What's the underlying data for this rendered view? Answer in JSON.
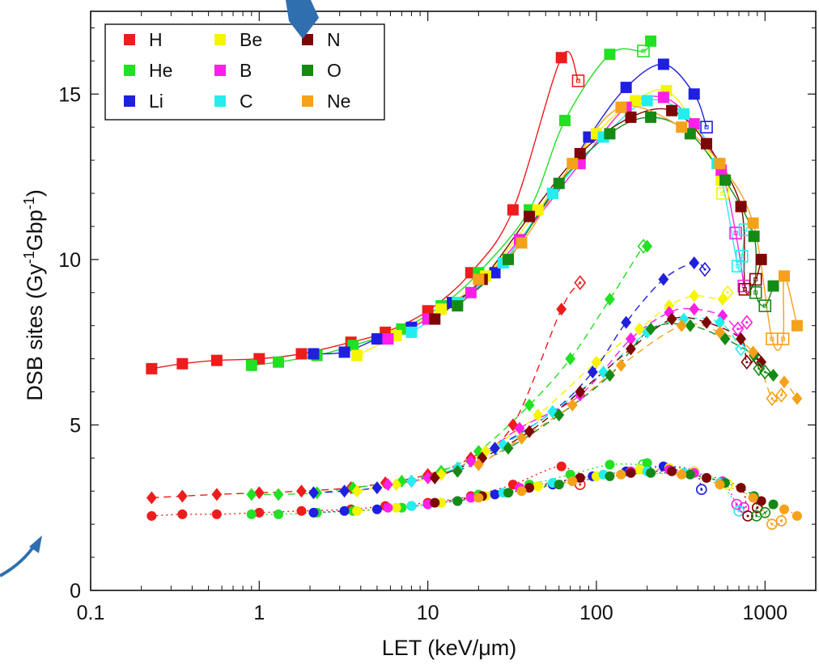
{
  "chart_data": {
    "type": "scatter",
    "title": "",
    "xlabel": "LET (keV/μm)",
    "ylabel_parts": [
      "DSB sites (Gy",
      "-1",
      "Gbp",
      "-1",
      ")"
    ],
    "xscale": "log",
    "xlim": [
      0.1,
      2000
    ],
    "ylim": [
      0,
      17.5
    ],
    "xticks": [
      0.1,
      1,
      10,
      100,
      1000
    ],
    "xtick_labels": [
      "0.1",
      "1",
      "10",
      "100",
      "1000"
    ],
    "yticks": [
      0,
      5,
      10,
      15
    ],
    "ytick_labels": [
      "0",
      "5",
      "10",
      "15"
    ],
    "grid": false,
    "legend_position": "top-left",
    "legend": [
      {
        "name": "H",
        "color": "#ee1c1c"
      },
      {
        "name": "He",
        "color": "#22e022"
      },
      {
        "name": "Li",
        "color": "#1f1fe0"
      },
      {
        "name": "Be",
        "color": "#f5f500"
      },
      {
        "name": "B",
        "color": "#ff1fe8"
      },
      {
        "name": "C",
        "color": "#22eef0"
      },
      {
        "name": "N",
        "color": "#7d0505"
      },
      {
        "name": "O",
        "color": "#148a14"
      },
      {
        "name": "Ne",
        "color": "#f5a11a"
      }
    ],
    "groups": [
      {
        "marker": "square",
        "curve": "solid",
        "series": [
          {
            "name": "H",
            "x": [
              0.23,
              0.35,
              0.56,
              1.0,
              1.78,
              3.5,
              5.6,
              10,
              18,
              32,
              62
            ],
            "y": [
              6.7,
              6.85,
              6.95,
              7.0,
              7.15,
              7.5,
              7.8,
              8.45,
              9.6,
              11.5,
              16.1
            ],
            "open_x": [
              78
            ],
            "open_y": [
              15.4
            ]
          },
          {
            "name": "He",
            "x": [
              0.9,
              1.3,
              2.2,
              3.6,
              7,
              12,
              20,
              40,
              65,
              120,
              210
            ],
            "y": [
              6.8,
              6.9,
              7.1,
              7.4,
              7.9,
              8.6,
              9.6,
              11.5,
              14.2,
              16.2,
              16.6
            ],
            "open_x": [
              190
            ],
            "open_y": [
              16.3
            ]
          },
          {
            "name": "Li",
            "x": [
              2.1,
              3.2,
              5,
              8,
              14,
              25,
              55,
              90,
              150,
              250,
              380
            ],
            "y": [
              7.15,
              7.2,
              7.6,
              7.95,
              8.7,
              9.6,
              12.0,
              13.7,
              15.2,
              15.9,
              15.0
            ],
            "open_x": [
              450
            ],
            "open_y": [
              14.0
            ]
          },
          {
            "name": "Be",
            "x": [
              3.8,
              6.5,
              12,
              22,
              45,
              100,
              170,
              260,
              380,
              550
            ],
            "y": [
              7.1,
              7.7,
              8.5,
              9.5,
              11.5,
              13.8,
              14.8,
              15.1,
              14.1,
              12.4
            ],
            "open_x": [
              560
            ],
            "open_y": [
              12.0
            ]
          },
          {
            "name": "B",
            "x": [
              5.8,
              10,
              18,
              35,
              80,
              150,
              250,
              380,
              550
            ],
            "y": [
              7.6,
              8.2,
              9.0,
              10.6,
              12.9,
              14.6,
              14.9,
              14.1,
              12.7
            ],
            "open_x": [
              670,
              750
            ],
            "open_y": [
              10.8,
              9.2
            ]
          },
          {
            "name": "C",
            "x": [
              8,
              15,
              28,
              55,
              110,
              200,
              330,
              520
            ],
            "y": [
              7.8,
              8.7,
              9.9,
              12.0,
              13.7,
              14.8,
              14.4,
              12.9
            ],
            "open_x": [
              690,
              730,
              760
            ],
            "open_y": [
              9.8,
              10.1,
              10.9
            ]
          },
          {
            "name": "N",
            "x": [
              11,
              21,
              40,
              80,
              160,
              280,
              450,
              720,
              950
            ],
            "y": [
              8.2,
              9.4,
              11.3,
              13.2,
              14.3,
              14.5,
              13.5,
              11.6,
              10.0
            ],
            "open_x": [
              760,
              880
            ],
            "open_y": [
              9.1,
              9.4
            ]
          },
          {
            "name": "O",
            "x": [
              15,
              30,
              60,
              120,
              210,
              360,
              580,
              860,
              1120
            ],
            "y": [
              8.6,
              10.0,
              12.3,
              13.8,
              14.3,
              13.8,
              12.4,
              10.7,
              9.2
            ],
            "open_x": [
              880,
              1000
            ],
            "open_y": [
              9.0,
              8.6
            ]
          },
          {
            "name": "Ne",
            "x": [
              20,
              36,
              72,
              140,
              320,
              540,
              850,
              1300,
              1550
            ],
            "y": [
              9.4,
              10.5,
              12.9,
              14.6,
              14.0,
              12.9,
              11.1,
              9.5,
              8.0
            ],
            "open_x": [
              1100,
              1280
            ],
            "open_y": [
              7.6,
              7.6
            ]
          }
        ]
      },
      {
        "marker": "diamond",
        "curve": "dashed",
        "series": [
          {
            "name": "H",
            "x": [
              0.23,
              0.35,
              0.56,
              1.0,
              1.78,
              3.5,
              5.6,
              10,
              18,
              32,
              62
            ],
            "y": [
              2.8,
              2.85,
              2.9,
              2.95,
              3.0,
              3.1,
              3.25,
              3.5,
              4.0,
              5.0,
              8.5
            ],
            "open_x": [
              80
            ],
            "open_y": [
              9.3
            ]
          },
          {
            "name": "He",
            "x": [
              0.9,
              1.3,
              2.2,
              3.6,
              7,
              12,
              20,
              40,
              70,
              120,
              200
            ],
            "y": [
              2.9,
              2.9,
              2.95,
              3.1,
              3.3,
              3.6,
              4.2,
              5.6,
              7.0,
              8.8,
              10.4
            ],
            "open_x": [
              190
            ],
            "open_y": [
              10.4
            ]
          },
          {
            "name": "Li",
            "x": [
              2.1,
              3.2,
              5,
              8,
              15,
              25,
              55,
              95,
              150,
              250,
              380
            ],
            "y": [
              2.95,
              3.0,
              3.1,
              3.3,
              3.7,
              4.3,
              5.4,
              6.6,
              8.1,
              9.4,
              9.9
            ],
            "open_x": [
              440
            ],
            "open_y": [
              9.7
            ]
          },
          {
            "name": "Be",
            "x": [
              3.8,
              6.5,
              12,
              22,
              45,
              100,
              180,
              270,
              380,
              560
            ],
            "y": [
              3.0,
              3.2,
              3.5,
              4.2,
              5.3,
              6.9,
              7.9,
              8.6,
              8.9,
              8.8
            ],
            "open_x": [
              600
            ],
            "open_y": [
              9.0
            ]
          },
          {
            "name": "B",
            "x": [
              5.8,
              10,
              18,
              35,
              80,
              160,
              270,
              380,
              560
            ],
            "y": [
              3.2,
              3.4,
              3.9,
              4.9,
              5.9,
              7.6,
              8.4,
              8.5,
              8.3
            ],
            "open_x": [
              690,
              780
            ],
            "open_y": [
              7.9,
              8.1
            ]
          },
          {
            "name": "C",
            "x": [
              8,
              15,
              28,
              55,
              110,
              200,
              330,
              540
            ],
            "y": [
              3.3,
              3.7,
              4.4,
              5.4,
              6.6,
              7.8,
              8.2,
              8.1
            ],
            "open_x": [
              720
            ],
            "open_y": [
              7.3
            ]
          },
          {
            "name": "N",
            "x": [
              11,
              21,
              40,
              80,
              160,
              280,
              450,
              720,
              950
            ],
            "y": [
              3.4,
              4.0,
              4.8,
              6.0,
              7.3,
              8.2,
              8.1,
              7.6,
              6.9
            ],
            "open_x": [
              780,
              900
            ],
            "open_y": [
              6.9,
              7.0
            ]
          },
          {
            "name": "O",
            "x": [
              15,
              30,
              60,
              120,
              210,
              360,
              580,
              860,
              1120
            ],
            "y": [
              3.6,
              4.3,
              5.3,
              6.5,
              7.9,
              8.0,
              7.6,
              7.1,
              6.5
            ],
            "open_x": [
              920,
              1000
            ],
            "open_y": [
              6.7,
              6.6
            ]
          },
          {
            "name": "Ne",
            "x": [
              20,
              36,
              72,
              140,
              320,
              540,
              850,
              1300,
              1550
            ],
            "y": [
              3.8,
              4.6,
              5.6,
              6.8,
              8.0,
              7.8,
              7.2,
              6.3,
              5.8
            ],
            "open_x": [
              1100,
              1250
            ],
            "open_y": [
              5.8,
              5.9
            ]
          }
        ]
      },
      {
        "marker": "circle",
        "curve": "dotted",
        "series": [
          {
            "name": "H",
            "x": [
              0.23,
              0.35,
              0.56,
              1.0,
              1.78,
              3.5,
              5.6,
              10,
              18,
              32,
              62
            ],
            "y": [
              2.25,
              2.3,
              2.3,
              2.35,
              2.4,
              2.45,
              2.55,
              2.65,
              2.85,
              3.2,
              3.75
            ],
            "open_x": [
              80
            ],
            "open_y": [
              3.2
            ]
          },
          {
            "name": "He",
            "x": [
              0.9,
              1.3,
              2.2,
              3.6,
              7,
              12,
              20,
              40,
              70,
              120,
              200
            ],
            "y": [
              2.3,
              2.3,
              2.35,
              2.4,
              2.5,
              2.65,
              2.9,
              3.2,
              3.5,
              3.8,
              3.85
            ],
            "open_x": [
              190
            ],
            "open_y": [
              3.8
            ]
          },
          {
            "name": "Li",
            "x": [
              2.1,
              3.2,
              5,
              8,
              15,
              25,
              55,
              95,
              150,
              250,
              380
            ],
            "y": [
              2.35,
              2.4,
              2.45,
              2.55,
              2.7,
              2.9,
              3.2,
              3.45,
              3.6,
              3.75,
              3.6
            ],
            "open_x": [
              420
            ],
            "open_y": [
              3.05
            ]
          },
          {
            "name": "Be",
            "x": [
              3.8,
              6.5,
              12,
              22,
              45,
              100,
              180,
              270,
              380,
              560
            ],
            "y": [
              2.4,
              2.5,
              2.65,
              2.85,
              3.15,
              3.45,
              3.65,
              3.7,
              3.6,
              3.3
            ],
            "open_x": [
              600
            ],
            "open_y": [
              3.2
            ]
          },
          {
            "name": "B",
            "x": [
              5.8,
              10,
              18,
              35,
              80,
              160,
              270,
              380,
              560
            ],
            "y": [
              2.5,
              2.6,
              2.8,
              3.1,
              3.4,
              3.6,
              3.65,
              3.55,
              3.3
            ],
            "open_x": [
              680,
              750
            ],
            "open_y": [
              2.6,
              2.5
            ]
          },
          {
            "name": "C",
            "x": [
              8,
              15,
              28,
              55,
              110,
              200,
              330,
              540
            ],
            "y": [
              2.55,
              2.7,
              2.95,
              3.25,
              3.5,
              3.6,
              3.55,
              3.25
            ],
            "open_x": [
              700
            ],
            "open_y": [
              2.4
            ]
          },
          {
            "name": "N",
            "x": [
              11,
              21,
              40,
              80,
              160,
              280,
              450,
              720,
              950
            ],
            "y": [
              2.65,
              2.85,
              3.1,
              3.4,
              3.55,
              3.6,
              3.4,
              3.1,
              2.7
            ],
            "open_x": [
              790,
              900
            ],
            "open_y": [
              2.25,
              2.5
            ]
          },
          {
            "name": "O",
            "x": [
              15,
              30,
              60,
              120,
              210,
              360,
              580,
              860,
              1120
            ],
            "y": [
              2.7,
              2.95,
              3.2,
              3.45,
              3.55,
              3.5,
              3.25,
              2.85,
              2.6
            ],
            "open_x": [
              890,
              1000
            ],
            "open_y": [
              2.25,
              2.35
            ]
          },
          {
            "name": "Ne",
            "x": [
              20,
              36,
              72,
              140,
              320,
              540,
              850,
              1300,
              1550
            ],
            "y": [
              2.8,
              3.0,
              3.3,
              3.5,
              3.5,
              3.2,
              2.8,
              2.45,
              2.25
            ],
            "open_x": [
              1100,
              1250
            ],
            "open_y": [
              2.0,
              2.1
            ]
          }
        ]
      }
    ]
  },
  "decor": {
    "arrow_color": "#2f6fb0"
  }
}
